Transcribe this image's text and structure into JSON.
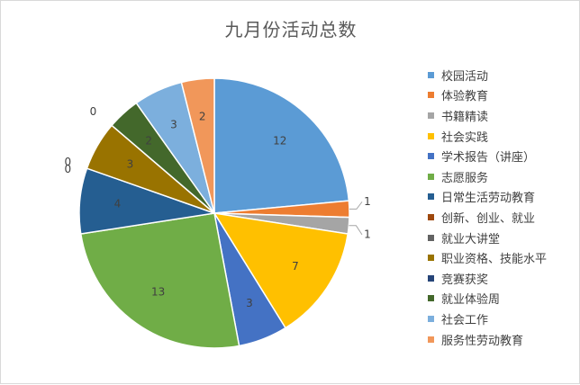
{
  "chart_data": {
    "type": "pie",
    "title": "九月份活动总数",
    "categories": [
      "校园活动",
      "体验教育",
      "书籍精读",
      "社会实践",
      "学术报告（讲座）",
      "志愿服务",
      "日常生活劳动教育",
      "创新、创业、就业",
      "就业大讲堂",
      "职业资格、技能水平",
      "竞赛获奖",
      "就业体验周",
      "社会工作",
      "服务性劳动教育"
    ],
    "values": [
      12,
      1,
      1,
      7,
      3,
      13,
      4,
      0,
      0,
      3,
      0,
      2,
      3,
      2
    ],
    "colors": [
      "#5B9BD5",
      "#ED7D31",
      "#A5A5A5",
      "#FFC000",
      "#4472C4",
      "#70AD47",
      "#255E91",
      "#9E480E",
      "#636363",
      "#997300",
      "#264478",
      "#43682B",
      "#7CAFDD",
      "#F1975A"
    ],
    "legend_position": "right"
  }
}
